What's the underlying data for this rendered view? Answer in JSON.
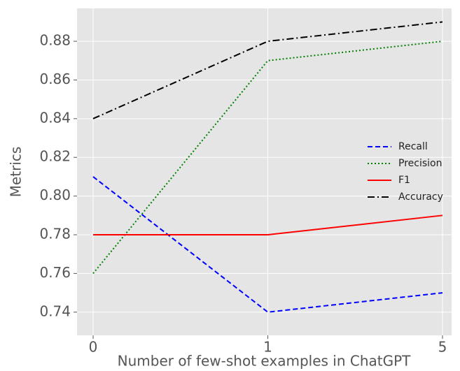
{
  "chart_data": {
    "type": "line",
    "x_label": "Number of few-shot examples in ChatGPT",
    "y_label": "Metrics",
    "categories": [
      "0",
      "1",
      "5"
    ],
    "series": [
      {
        "name": "Recall",
        "color": "#0000ff",
        "dash": "dashed",
        "values": [
          0.81,
          0.74,
          0.75
        ]
      },
      {
        "name": "Precision",
        "color": "#008000",
        "dash": "dotted",
        "values": [
          0.76,
          0.87,
          0.88
        ]
      },
      {
        "name": "F1",
        "color": "#ff0000",
        "dash": "solid",
        "values": [
          0.78,
          0.78,
          0.79
        ]
      },
      {
        "name": "Accuracy",
        "color": "#000000",
        "dash": "dashdot",
        "values": [
          0.84,
          0.88,
          0.89
        ]
      }
    ],
    "ylim": [
      0.728,
      0.897
    ],
    "yticks": [
      {
        "value": 0.74,
        "label": "0.74"
      },
      {
        "value": 0.76,
        "label": "0.76"
      },
      {
        "value": 0.78,
        "label": "0.78"
      },
      {
        "value": 0.8,
        "label": "0.80"
      },
      {
        "value": 0.82,
        "label": "0.82"
      },
      {
        "value": 0.84,
        "label": "0.84"
      },
      {
        "value": 0.86,
        "label": "0.86"
      },
      {
        "value": 0.88,
        "label": "0.88"
      }
    ],
    "grid": true,
    "legend": "center right"
  }
}
